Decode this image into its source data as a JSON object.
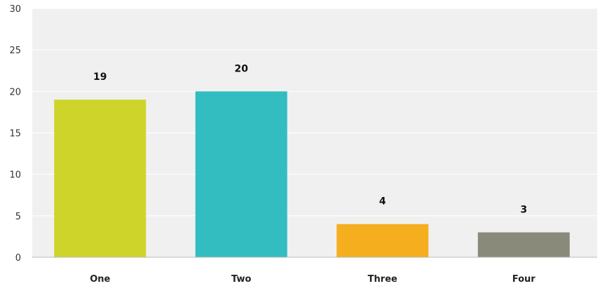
{
  "chart_data": {
    "type": "bar",
    "categories": [
      "One",
      "Two",
      "Three",
      "Four"
    ],
    "values": [
      19,
      20,
      4,
      3
    ],
    "value_labels": [
      "19",
      "20",
      "4",
      "3"
    ],
    "colors": [
      "#cfd42a",
      "#33bdc0",
      "#f5ae1e",
      "#8a8a7a"
    ],
    "yticks": [
      "0",
      "5",
      "10",
      "15",
      "20",
      "25",
      "30"
    ],
    "ytick_values": [
      0,
      5,
      10,
      15,
      20,
      25,
      30
    ],
    "ylim": [
      0,
      30
    ],
    "title": "",
    "xlabel": "",
    "ylabel": "",
    "grid": true,
    "plot_background": "#f0f0f0",
    "grid_color": "#ffffff"
  }
}
